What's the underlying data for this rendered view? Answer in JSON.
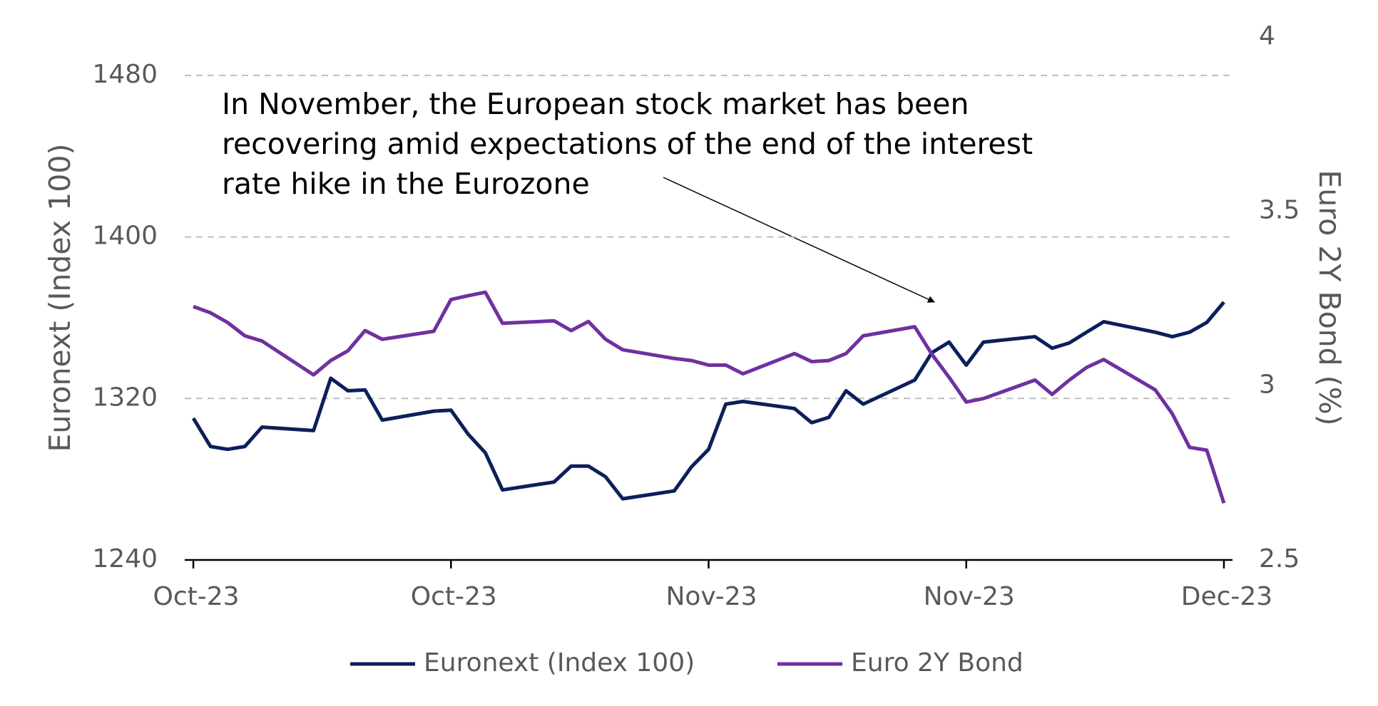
{
  "chart_data": {
    "type": "line",
    "annotation": [
      "In November, the European stock market has been",
      "recovering amid expectations of the end of the interest",
      "rate hike in the Eurozone"
    ],
    "ylabel": "Euronext (Index 100)",
    "y2label": "Euro 2Y Bond (%)",
    "x": [
      0,
      1,
      2,
      3,
      4,
      7,
      8,
      9,
      10,
      11,
      14,
      15,
      16,
      17,
      18,
      21,
      22,
      23,
      24,
      25,
      28,
      29,
      30,
      31,
      32,
      35,
      36,
      37,
      38,
      39,
      42,
      43,
      44,
      45,
      46,
      49,
      50,
      51,
      52,
      53,
      56,
      57,
      58,
      59,
      60
    ],
    "xlim": [
      -0.5,
      60.5
    ],
    "xticks": [
      {
        "value": 0,
        "label": "Oct-23"
      },
      {
        "value": 15,
        "label": "Oct-23"
      },
      {
        "value": 30,
        "label": "Nov-23"
      },
      {
        "value": 45,
        "label": "Nov-23"
      },
      {
        "value": 60,
        "label": "Dec-23"
      }
    ],
    "ylim": [
      1240,
      1499
    ],
    "yticks": [
      1240,
      1320,
      1400,
      1480
    ],
    "y2lim": [
      2.5,
      4
    ],
    "y2ticks": [
      2.5,
      3,
      3.5,
      4
    ],
    "grid": true,
    "legend": "bottom",
    "series": [
      {
        "name": "Euronext (Index 100)",
        "color": "#0c1f5b",
        "values": [
          1310.2,
          1296.2,
          1294.8,
          1296.2,
          1305.8,
          1304.1,
          1330.0,
          1323.8,
          1324.2,
          1309.3,
          1313.7,
          1314.2,
          1302.3,
          1293.1,
          1274.7,
          1278.6,
          1286.5,
          1286.5,
          1281.2,
          1270.3,
          1274.2,
          1286.1,
          1294.8,
          1317.2,
          1318.5,
          1315.0,
          1308.0,
          1310.6,
          1323.8,
          1317.2,
          1329.1,
          1342.7,
          1347.9,
          1336.5,
          1347.9,
          1350.6,
          1344.9,
          1347.5,
          1352.8,
          1358.0,
          1352.8,
          1350.6,
          1352.8,
          1357.6,
          1367.7
        ]
      },
      {
        "name": "Euro 2Y Bond",
        "color": "#7030a0",
        "axis": "y2",
        "values": [
          3.227,
          3.209,
          3.181,
          3.143,
          3.128,
          3.031,
          3.072,
          3.1,
          3.158,
          3.133,
          3.156,
          3.247,
          3.258,
          3.268,
          3.179,
          3.186,
          3.158,
          3.184,
          3.133,
          3.103,
          3.078,
          3.072,
          3.059,
          3.059,
          3.034,
          3.092,
          3.069,
          3.072,
          3.092,
          3.143,
          3.169,
          3.09,
          3.024,
          2.953,
          2.963,
          3.016,
          2.975,
          3.016,
          3.052,
          3.075,
          2.988,
          2.919,
          2.823,
          2.815,
          2.663
        ]
      }
    ]
  }
}
